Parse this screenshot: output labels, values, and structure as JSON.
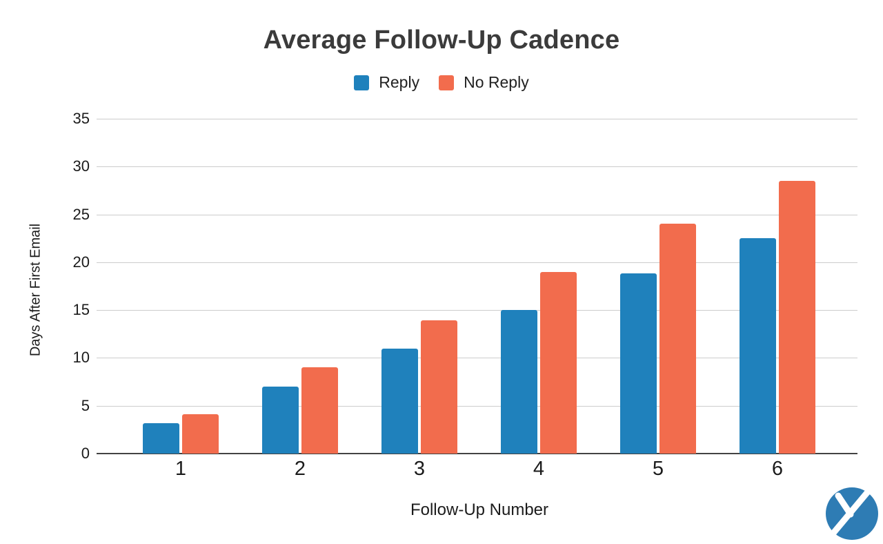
{
  "chart_data": {
    "type": "bar",
    "title": "Average Follow-Up Cadence",
    "xlabel": "Follow-Up Number",
    "ylabel": "Days After First Email",
    "categories": [
      "1",
      "2",
      "3",
      "4",
      "5",
      "6"
    ],
    "series": [
      {
        "name": "Reply",
        "color": "#1F81BC",
        "values": [
          3.2,
          7,
          11,
          15,
          18.8,
          22.5
        ]
      },
      {
        "name": "No Reply",
        "color": "#F26C4D",
        "values": [
          4.1,
          9,
          13.9,
          19,
          24,
          28.5
        ]
      }
    ],
    "ylim": [
      0,
      35
    ],
    "yticks": [
      0,
      5,
      10,
      15,
      20,
      25,
      30,
      35
    ],
    "grid": true,
    "legend_position": "top-center"
  },
  "branding": {
    "logo": "yesware-y-logo",
    "logo_color": "#2E7CB4"
  }
}
